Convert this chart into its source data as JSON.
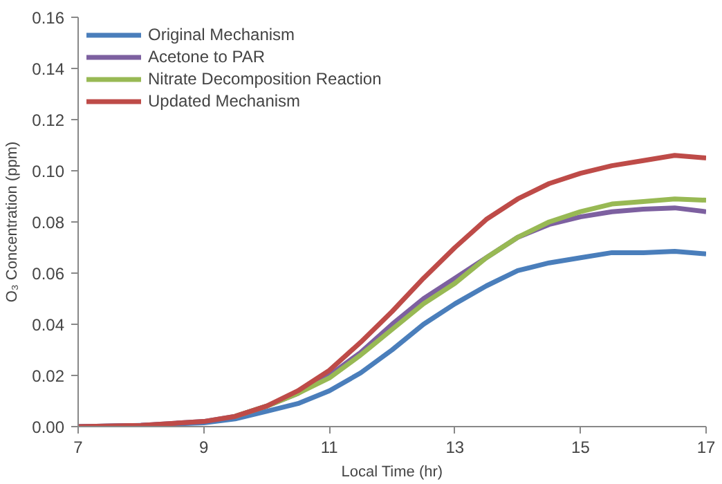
{
  "chart_data": {
    "type": "line",
    "xlabel": "Local Time (hr)",
    "ylabel": "O₃ Concentration (ppm)",
    "x": [
      7,
      8,
      9,
      9.5,
      10,
      10.5,
      11,
      11.5,
      12,
      12.5,
      13,
      13.5,
      14,
      14.5,
      15,
      15.5,
      16,
      16.5,
      17
    ],
    "xlim": [
      7,
      17
    ],
    "xticks": [
      7,
      9,
      11,
      13,
      15,
      17
    ],
    "ylim": [
      0,
      0.16
    ],
    "yticks": [
      {
        "value": 0,
        "label": "0.00"
      },
      {
        "value": 0.02,
        "label": "0.02"
      },
      {
        "value": 0.04,
        "label": "0.04"
      },
      {
        "value": 0.06,
        "label": "0.06"
      },
      {
        "value": 0.08,
        "label": "0.08"
      },
      {
        "value": 0.1,
        "label": "0.10"
      },
      {
        "value": 0.12,
        "label": "0.12"
      },
      {
        "value": 0.14,
        "label": "0.14"
      },
      {
        "value": 0.16,
        "label": "0.16"
      }
    ],
    "grid": false,
    "legend": "top left",
    "marker": "none",
    "line_style": "solid",
    "series": [
      {
        "name": "Original Mechanism",
        "color": "#4a7ebb",
        "values": [
          0,
          0.0005,
          0.0015,
          0.003,
          0.006,
          0.009,
          0.014,
          0.021,
          0.03,
          0.04,
          0.048,
          0.055,
          0.061,
          0.064,
          0.066,
          0.068,
          0.068,
          0.0685,
          0.0675
        ]
      },
      {
        "name": "Acetone to PAR",
        "color": "#7d60a0",
        "values": [
          0,
          0.0005,
          0.002,
          0.004,
          0.008,
          0.013,
          0.02,
          0.029,
          0.04,
          0.05,
          0.058,
          0.066,
          0.074,
          0.079,
          0.082,
          0.084,
          0.085,
          0.0855,
          0.084
        ]
      },
      {
        "name": "Nitrate Decomposition Reaction",
        "color": "#98b954",
        "values": [
          null,
          null,
          null,
          0.004,
          0.008,
          0.013,
          0.019,
          0.028,
          0.038,
          0.048,
          0.056,
          0.066,
          0.074,
          0.08,
          0.084,
          0.087,
          0.088,
          0.089,
          0.0885
        ]
      },
      {
        "name": "Updated Mechanism",
        "color": "#be4b48",
        "values": [
          0,
          0.0005,
          0.002,
          0.004,
          0.008,
          0.014,
          0.022,
          0.033,
          0.045,
          0.058,
          0.07,
          0.081,
          0.089,
          0.095,
          0.099,
          0.102,
          0.104,
          0.106,
          0.105
        ]
      }
    ]
  }
}
